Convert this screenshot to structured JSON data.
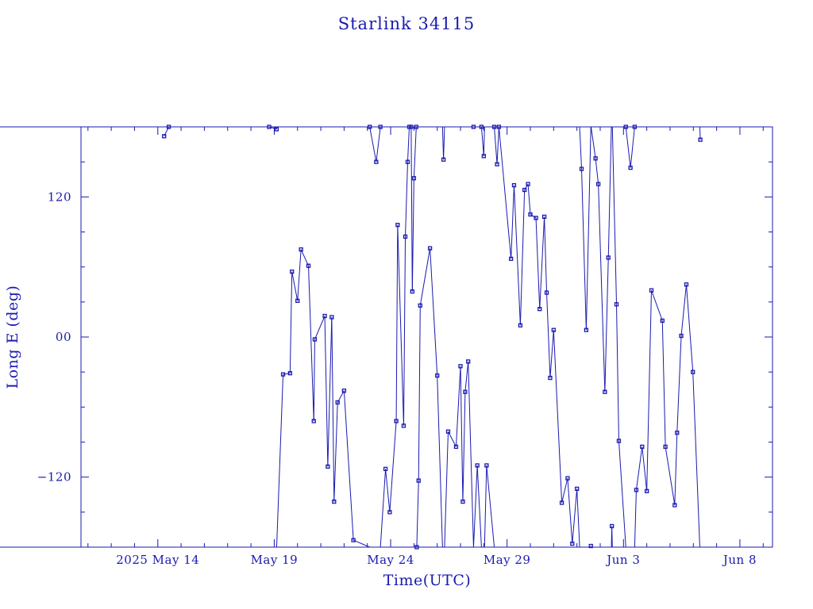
{
  "chart_data": {
    "type": "scatter",
    "title": "Starlink 34115",
    "xlabel": "Time(UTC)",
    "ylabel": "Long E (deg)",
    "x_unit": "days",
    "xlim": [
      9.7,
      39.4
    ],
    "ylim": [
      -180,
      180
    ],
    "x_ticks": [
      {
        "value": 13.0,
        "label": "2025 May 14"
      },
      {
        "value": 18.0,
        "label": "May 19"
      },
      {
        "value": 23.0,
        "label": "May 24"
      },
      {
        "value": 28.0,
        "label": "May 29"
      },
      {
        "value": 33.0,
        "label": "Jun  3"
      },
      {
        "value": 38.0,
        "label": "Jun  8"
      }
    ],
    "y_ticks": [
      {
        "value": 120,
        "label": "120"
      },
      {
        "value": 0,
        "label": "00"
      },
      {
        "value": -120,
        "label": "−120"
      }
    ],
    "grid": false,
    "markers": "small open squares",
    "connected": true,
    "wrap_longitude": true,
    "points": [
      {
        "x": 13.27,
        "y": 172
      },
      {
        "x": 13.47,
        "y": 180
      },
      {
        "x": 17.78,
        "y": 180
      },
      {
        "x": 18.1,
        "y": 178
      },
      {
        "x": 18.38,
        "y": -32
      },
      {
        "x": 18.68,
        "y": -31
      },
      {
        "x": 18.76,
        "y": 56
      },
      {
        "x": 19.0,
        "y": 31
      },
      {
        "x": 19.15,
        "y": 75
      },
      {
        "x": 19.47,
        "y": 61
      },
      {
        "x": 19.7,
        "y": -72
      },
      {
        "x": 19.74,
        "y": -2
      },
      {
        "x": 20.17,
        "y": 18
      },
      {
        "x": 20.3,
        "y": -111
      },
      {
        "x": 20.47,
        "y": 17
      },
      {
        "x": 20.57,
        "y": -141
      },
      {
        "x": 20.72,
        "y": -56
      },
      {
        "x": 21.0,
        "y": -46
      },
      {
        "x": 21.4,
        "y": -174
      },
      {
        "x": 22.1,
        "y": 180
      },
      {
        "x": 22.38,
        "y": 150
      },
      {
        "x": 22.56,
        "y": 180
      },
      {
        "x": 22.78,
        "y": -113
      },
      {
        "x": 22.96,
        "y": -150
      },
      {
        "x": 23.24,
        "y": -72
      },
      {
        "x": 23.3,
        "y": 96
      },
      {
        "x": 23.56,
        "y": -76
      },
      {
        "x": 23.63,
        "y": 86
      },
      {
        "x": 23.73,
        "y": 150
      },
      {
        "x": 23.8,
        "y": 180
      },
      {
        "x": 23.88,
        "y": 180
      },
      {
        "x": 23.93,
        "y": 39
      },
      {
        "x": 24.0,
        "y": 136
      },
      {
        "x": 24.1,
        "y": 180
      },
      {
        "x": 24.12,
        "y": -180
      },
      {
        "x": 24.2,
        "y": -123
      },
      {
        "x": 24.27,
        "y": 27
      },
      {
        "x": 24.69,
        "y": 76
      },
      {
        "x": 25.0,
        "y": -33
      },
      {
        "x": 25.27,
        "y": 152
      },
      {
        "x": 25.47,
        "y": -81
      },
      {
        "x": 25.81,
        "y": -94
      },
      {
        "x": 26.0,
        "y": -25
      },
      {
        "x": 26.1,
        "y": -141
      },
      {
        "x": 26.2,
        "y": -47
      },
      {
        "x": 26.33,
        "y": -21
      },
      {
        "x": 26.56,
        "y": 180
      },
      {
        "x": 26.72,
        "y": -110
      },
      {
        "x": 26.9,
        "y": 180
      },
      {
        "x": 27.0,
        "y": 155
      },
      {
        "x": 27.12,
        "y": -110
      },
      {
        "x": 27.45,
        "y": 180
      },
      {
        "x": 27.57,
        "y": 148
      },
      {
        "x": 27.65,
        "y": 180
      },
      {
        "x": 28.17,
        "y": 67
      },
      {
        "x": 28.3,
        "y": 130
      },
      {
        "x": 28.57,
        "y": 10
      },
      {
        "x": 28.75,
        "y": 126
      },
      {
        "x": 28.9,
        "y": 131
      },
      {
        "x": 29.0,
        "y": 105
      },
      {
        "x": 29.24,
        "y": 102
      },
      {
        "x": 29.4,
        "y": 24
      },
      {
        "x": 29.6,
        "y": 103
      },
      {
        "x": 29.7,
        "y": 38
      },
      {
        "x": 29.85,
        "y": -35
      },
      {
        "x": 30.0,
        "y": 6
      },
      {
        "x": 30.35,
        "y": -142
      },
      {
        "x": 30.6,
        "y": -121
      },
      {
        "x": 30.8,
        "y": -177
      },
      {
        "x": 31.0,
        "y": -130
      },
      {
        "x": 31.2,
        "y": 144
      },
      {
        "x": 31.4,
        "y": 6
      },
      {
        "x": 31.6,
        "y": -179
      },
      {
        "x": 31.8,
        "y": 153
      },
      {
        "x": 31.92,
        "y": 131
      },
      {
        "x": 32.2,
        "y": -47
      },
      {
        "x": 32.35,
        "y": 68
      },
      {
        "x": 32.5,
        "y": -162
      },
      {
        "x": 32.7,
        "y": 28
      },
      {
        "x": 32.8,
        "y": -89
      },
      {
        "x": 33.1,
        "y": 180
      },
      {
        "x": 33.3,
        "y": 145
      },
      {
        "x": 33.48,
        "y": 180
      },
      {
        "x": 33.55,
        "y": -131
      },
      {
        "x": 33.8,
        "y": -94
      },
      {
        "x": 34.0,
        "y": -132
      },
      {
        "x": 34.2,
        "y": 40
      },
      {
        "x": 34.67,
        "y": 14
      },
      {
        "x": 34.8,
        "y": -94
      },
      {
        "x": 35.2,
        "y": -144
      },
      {
        "x": 35.3,
        "y": -82
      },
      {
        "x": 35.48,
        "y": 1
      },
      {
        "x": 35.7,
        "y": 45
      },
      {
        "x": 35.98,
        "y": -30
      },
      {
        "x": 36.3,
        "y": 169
      }
    ]
  }
}
